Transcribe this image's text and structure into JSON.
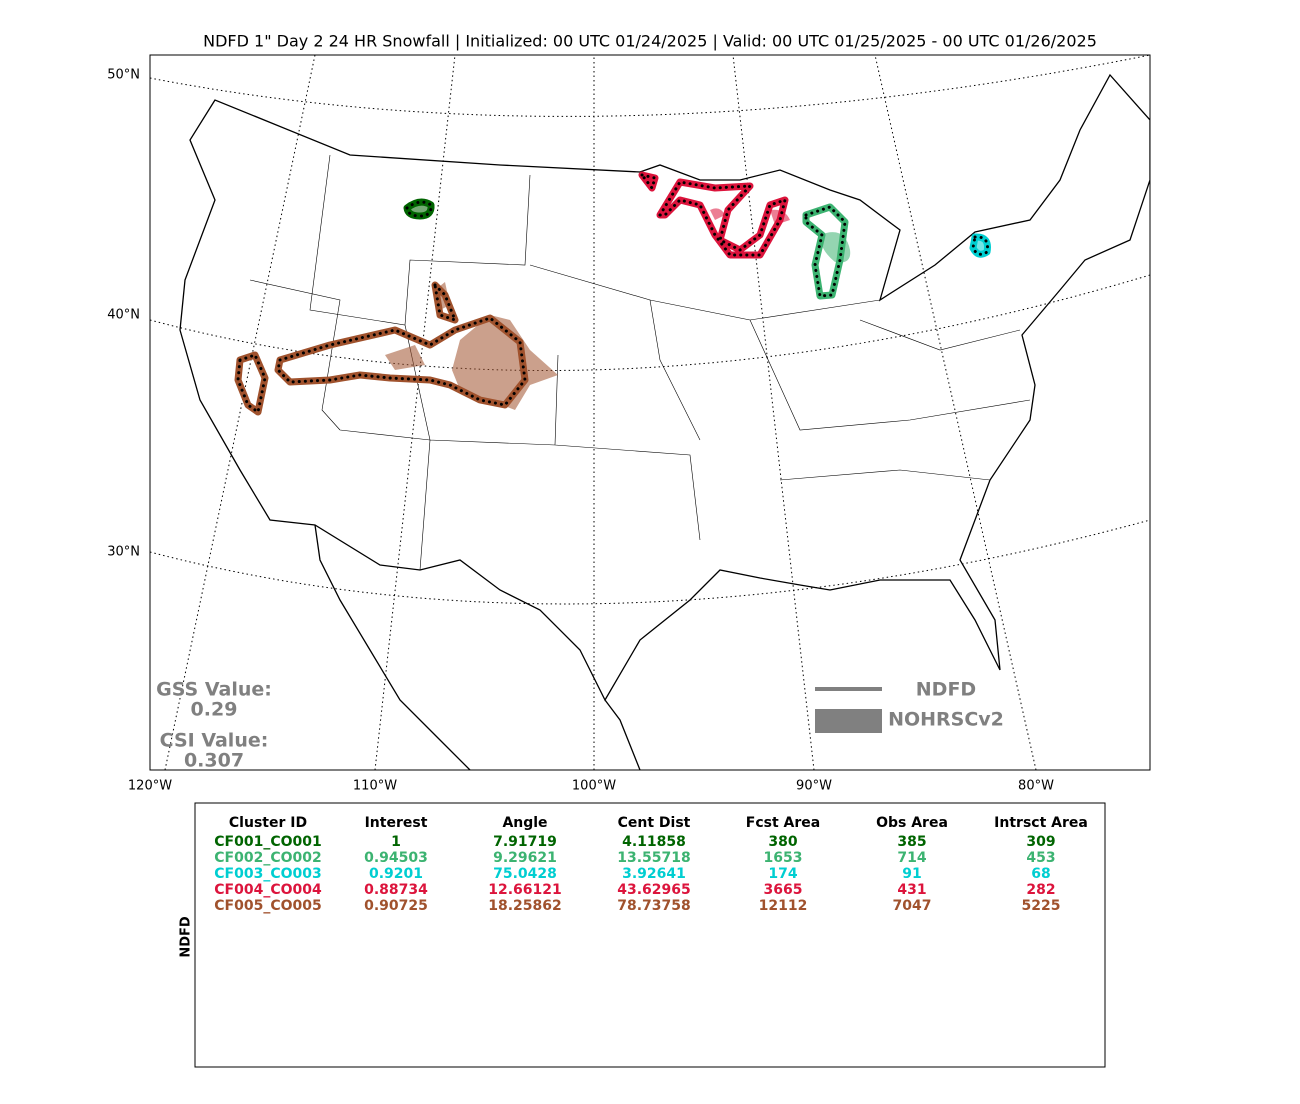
{
  "title": "NDFD 1\" Day 2 24 HR Snowfall | Initialized: 00 UTC 01/24/2025 | Valid: 00 UTC 01/25/2025 - 00 UTC 01/26/2025",
  "map": {
    "lat_labels": [
      "50°N",
      "40°N",
      "30°N"
    ],
    "lon_labels": [
      "120°W",
      "110°W",
      "100°W",
      "90°W",
      "80°W"
    ]
  },
  "scores": {
    "gss_label": "GSS Value:",
    "gss_value": 0.29,
    "csi_label": "CSI Value:",
    "csi_value": 0.307,
    "color": "#808080"
  },
  "legend": {
    "forecast": "NDFD",
    "observed": "NOHRSCv2",
    "color": "#808080"
  },
  "table": {
    "side_label": "NDFD",
    "columns": [
      "Cluster ID",
      "Interest",
      "Angle",
      "Cent Dist",
      "Fcst Area",
      "Obs Area",
      "Intrsct Area"
    ],
    "rows": [
      [
        "CF001_CO001",
        1,
        7.91719,
        4.11858,
        380,
        385,
        309
      ],
      [
        "CF002_CO002",
        0.94503,
        9.29621,
        13.55718,
        1653,
        714,
        453
      ],
      [
        "CF003_CO003",
        0.9201,
        75.0428,
        3.92641,
        174,
        91,
        68
      ],
      [
        "CF004_CO004",
        0.88734,
        12.66121,
        43.62965,
        3665,
        431,
        282
      ],
      [
        "CF005_CO005",
        0.90725,
        18.25862,
        78.73758,
        12112,
        7047,
        5225
      ]
    ],
    "row_colors": [
      "#006400",
      "#3cb371",
      "#00ced1",
      "#dc143c",
      "#a0522d"
    ]
  }
}
